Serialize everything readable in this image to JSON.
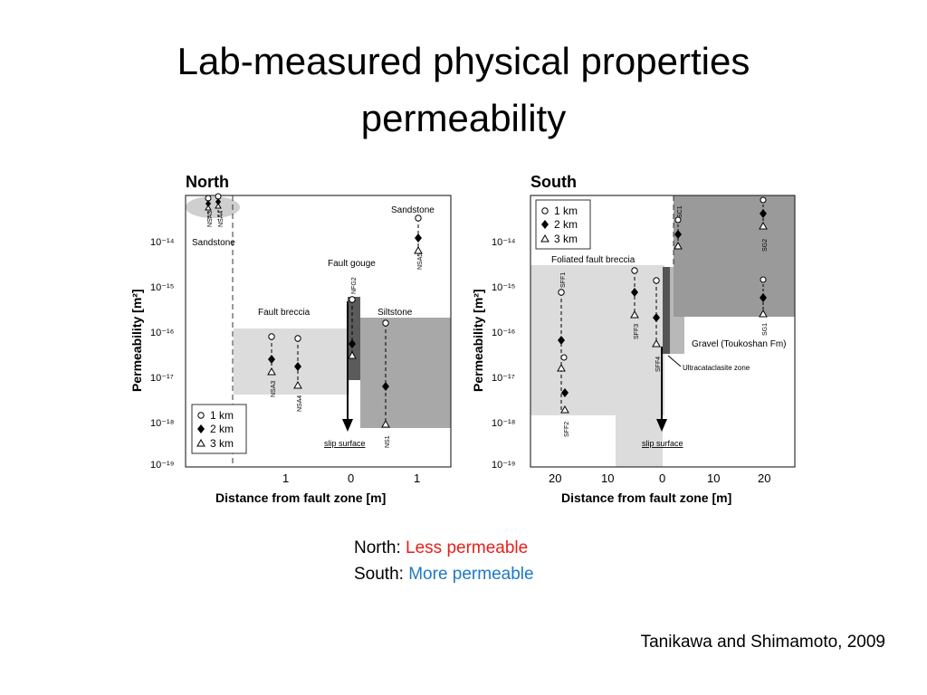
{
  "slide": {
    "title_line1": "Lab-measured physical properties",
    "title_line2": "permeability",
    "north_label": "North: ",
    "north_value": "Less permeable",
    "south_label": "South: ",
    "south_value": "More permeable",
    "citation": "Tanikawa and Shimamoto, 2009"
  },
  "chart_data": [
    {
      "type": "scatter",
      "title": "North",
      "xlabel": "Distance from fault zone [m]",
      "ylabel": "Permeability [m²]",
      "y_scale": "log",
      "ylim": [
        "1e-19",
        "1e-13"
      ],
      "xticks": [
        "1",
        "0",
        "1"
      ],
      "yticks": [
        "10⁻¹⁴",
        "10⁻¹⁵",
        "10⁻¹⁶",
        "10⁻¹⁷",
        "10⁻¹⁸",
        "10⁻¹⁹"
      ],
      "legend": [
        "1 km",
        "2 km",
        "3 km"
      ],
      "legend_position": "bottom-left",
      "zones": [
        "Sandstone",
        "Fault breccia",
        "Fault gouge",
        "Siltstone",
        "Sandstone"
      ],
      "annotations": [
        "slip surface"
      ],
      "samples": [
        {
          "name": "NSA3",
          "zone": "Sandstone",
          "k_1km": "6e-14",
          "k_2km": "5e-14",
          "k_3km": "5e-14"
        },
        {
          "name": "NSA4",
          "zone": "Sandstone",
          "k_1km": "6e-14",
          "k_2km": "5e-14",
          "k_3km": "5e-14"
        },
        {
          "name": "NSA3",
          "zone": "Fault breccia",
          "k_1km": "7e-17",
          "k_2km": "2.5e-17",
          "k_3km": "1e-17"
        },
        {
          "name": "NSA4",
          "zone": "Fault breccia",
          "k_1km": "6e-17",
          "k_2km": "1.5e-17",
          "k_3km": "5e-18"
        },
        {
          "name": "NFG2",
          "zone": "Fault gouge",
          "k_1km": "5e-16",
          "k_2km": "5e-17",
          "k_3km": "2e-17"
        },
        {
          "name": "NSA5",
          "zone": "Sandstone",
          "k_1km": "3e-14",
          "k_2km": "1e-14",
          "k_3km": "5e-15"
        },
        {
          "name": "NS1",
          "zone": "Siltstone",
          "k_1km": "1.5e-16",
          "k_2km": "5e-18",
          "k_3km": "7e-19"
        }
      ]
    },
    {
      "type": "scatter",
      "title": "South",
      "xlabel": "Distance from fault zone [m]",
      "ylabel": "Permeability [m²]",
      "y_scale": "log",
      "ylim": [
        "1e-19",
        "1e-13"
      ],
      "xticks": [
        "20",
        "10",
        "0",
        "10",
        "20"
      ],
      "yticks": [
        "10⁻¹⁴",
        "10⁻¹⁵",
        "10⁻¹⁶",
        "10⁻¹⁷",
        "10⁻¹⁸",
        "10⁻¹⁹"
      ],
      "legend": [
        "1 km",
        "2 km",
        "3 km"
      ],
      "legend_position": "top-left",
      "zones": [
        "Foliated fault breccia",
        "Gravel (Toukoshan Fm)",
        "Ultracataclasite zone"
      ],
      "annotations": [
        "slip surface"
      ],
      "samples": [
        {
          "name": "SFF1",
          "x_m": 18,
          "k_1km": "1.5e-15"
        },
        {
          "name": "SFF2",
          "x_m": 18,
          "k_1km": "2.5e-17",
          "k_2km": "4e-18",
          "k_3km": "2e-18"
        },
        {
          "name": "SFF3",
          "x_m": 4,
          "k_1km": "2e-15",
          "k_2km": "6e-16",
          "k_3km": "2.5e-16"
        },
        {
          "name": "SFF4",
          "x_m": 1,
          "k_1km": "1.2e-15",
          "k_2km": "1.8e-16",
          "k_3km": "4.5e-17"
        },
        {
          "name": "SC1",
          "x_m": 3,
          "k_1km": "5e-14",
          "k_2km": "1.2e-14",
          "k_3km": "8e-15"
        },
        {
          "name": "SG2",
          "x_m": 19,
          "k_1km": "8e-14",
          "k_2km": "4e-14",
          "k_3km": "2e-14"
        },
        {
          "name": "SG1",
          "x_m": 19,
          "k_1km": "1.5e-15",
          "k_2km": "5e-16",
          "k_3km": "2.5e-16"
        }
      ]
    }
  ]
}
